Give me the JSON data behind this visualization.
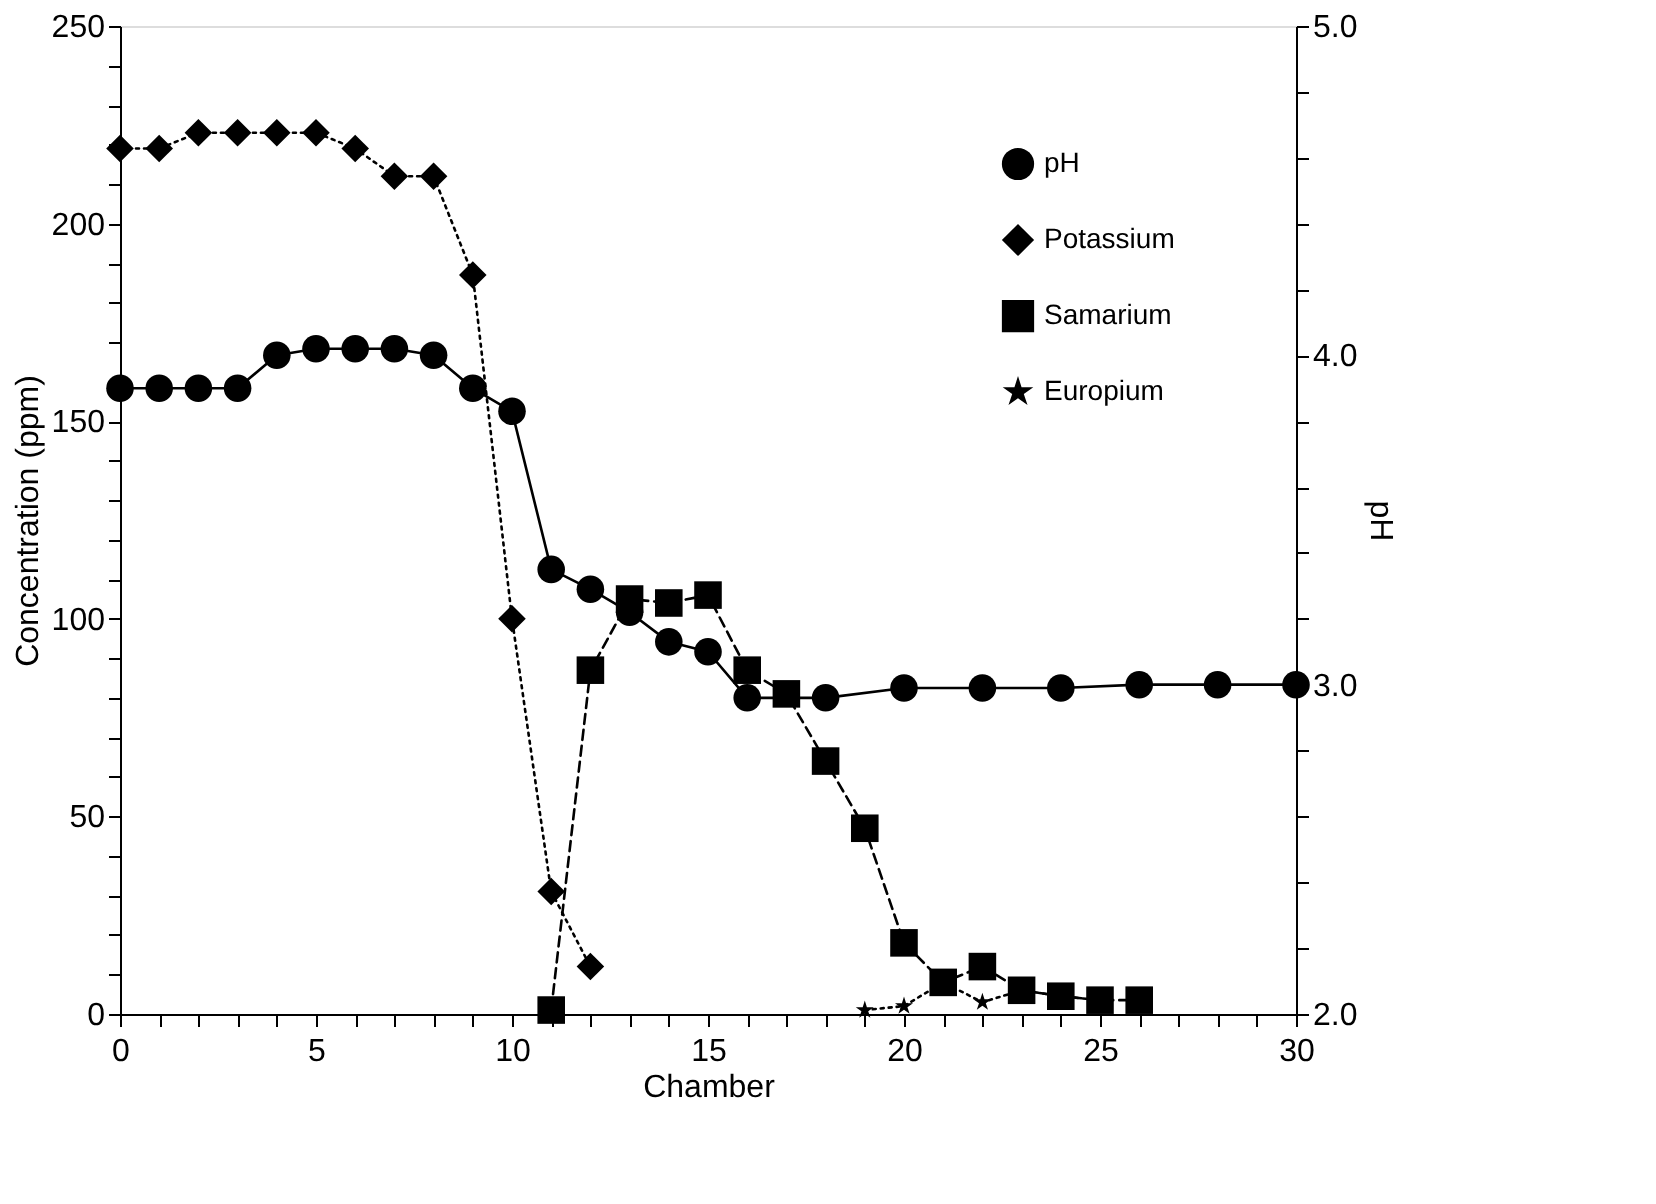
{
  "chart_data": {
    "type": "line",
    "xlabel": "Chamber",
    "ylabel": "Concentration (ppm)",
    "y2label": "pH",
    "xlim": [
      0,
      30
    ],
    "ylim": [
      0,
      250
    ],
    "y2lim": [
      2,
      5
    ],
    "xticks": [
      0,
      {
        "value": 1,
        "label": null
      },
      {
        "value": 2,
        "label": null
      },
      {
        "value": 3,
        "label": null
      },
      {
        "value": 4,
        "label": null
      },
      5,
      {
        "value": 6,
        "label": null
      },
      {
        "value": 7,
        "label": null
      },
      {
        "value": 8,
        "label": null
      },
      {
        "value": 9,
        "label": null
      },
      10,
      {
        "value": 11,
        "label": null
      },
      {
        "value": 12,
        "label": null
      },
      {
        "value": 13,
        "label": null
      },
      {
        "value": 14,
        "label": null
      },
      15,
      {
        "value": 16,
        "label": null
      },
      {
        "value": 17,
        "label": null
      },
      {
        "value": 18,
        "label": null
      },
      {
        "value": 19,
        "label": null
      },
      20,
      {
        "value": 21,
        "label": null
      },
      {
        "value": 22,
        "label": null
      },
      {
        "value": 23,
        "label": null
      },
      {
        "value": 24,
        "label": null
      },
      25,
      {
        "value": 26,
        "label": null
      },
      {
        "value": 27,
        "label": null
      },
      {
        "value": 28,
        "label": null
      },
      {
        "value": 29,
        "label": null
      },
      30
    ],
    "yticks": [
      0,
      {
        "value": 10,
        "label": null
      },
      {
        "value": 20,
        "label": null
      },
      {
        "value": 30,
        "label": null
      },
      {
        "value": 40,
        "label": null
      },
      50,
      {
        "value": 60,
        "label": null
      },
      {
        "value": 70,
        "label": null
      },
      {
        "value": 80,
        "label": null
      },
      {
        "value": 90,
        "label": null
      },
      100,
      {
        "value": 110,
        "label": null
      },
      {
        "value": 120,
        "label": null
      },
      {
        "value": 130,
        "label": null
      },
      {
        "value": 140,
        "label": null
      },
      150,
      {
        "value": 160,
        "label": null
      },
      {
        "value": 170,
        "label": null
      },
      {
        "value": 180,
        "label": null
      },
      {
        "value": 190,
        "label": null
      },
      200,
      {
        "value": 210,
        "label": null
      },
      {
        "value": 220,
        "label": null
      },
      {
        "value": 230,
        "label": null
      },
      {
        "value": 240,
        "label": null
      },
      250
    ],
    "y2ticks": [
      {
        "value": 2,
        "label": "2.0"
      },
      {
        "value": 2.2,
        "label": null
      },
      {
        "value": 2.4,
        "label": null
      },
      {
        "value": 2.6,
        "label": null
      },
      {
        "value": 2.8,
        "label": null
      },
      {
        "value": 3,
        "label": "3.0"
      },
      {
        "value": 3.2,
        "label": null
      },
      {
        "value": 3.4,
        "label": null
      },
      {
        "value": 3.6,
        "label": null
      },
      {
        "value": 3.8,
        "label": null
      },
      {
        "value": 4,
        "label": "4.0"
      },
      {
        "value": 4.2,
        "label": null
      },
      {
        "value": 4.4,
        "label": null
      },
      {
        "value": 4.6,
        "label": null
      },
      {
        "value": 4.8,
        "label": null
      },
      {
        "value": 5,
        "label": "5.0"
      }
    ],
    "grid": false,
    "legend": "top right",
    "series": [
      {
        "name": "pH",
        "color": "#000000",
        "marker": "circle",
        "line_style": "solid",
        "axis": "y2",
        "x": [
          0,
          1,
          2,
          3,
          4,
          5,
          6,
          7,
          8,
          9,
          10,
          11,
          12,
          13,
          14,
          15,
          16,
          18,
          20,
          22,
          24,
          26,
          28,
          30
        ],
        "values": [
          3.9,
          3.9,
          3.9,
          3.9,
          4.0,
          4.02,
          4.02,
          4.02,
          4.0,
          3.9,
          3.83,
          3.35,
          3.29,
          3.22,
          3.13,
          3.1,
          2.96,
          2.96,
          2.99,
          2.99,
          2.99,
          3.0,
          3.0,
          3.0
        ]
      },
      {
        "name": "Potassium",
        "color": "#000000",
        "marker": "diamond",
        "line_style": "dotted",
        "x": [
          0,
          1,
          2,
          3,
          4,
          5,
          6,
          7,
          8,
          9,
          10,
          11,
          12
        ],
        "values": [
          219,
          219,
          223,
          223,
          223,
          223,
          219,
          212,
          212,
          187,
          100,
          31,
          12
        ]
      },
      {
        "name": "Samarium",
        "color": "#000000",
        "marker": "square",
        "line_style": "dashed",
        "x": [
          11,
          12,
          13,
          14,
          15,
          16,
          17,
          18,
          19,
          20,
          21,
          22,
          23,
          24,
          25,
          26
        ],
        "values": [
          1,
          87,
          105,
          104,
          106,
          87,
          81,
          64,
          47,
          18,
          8,
          12,
          6,
          4.5,
          3.5,
          3.5
        ]
      },
      {
        "name": "Europium",
        "color": "#000000",
        "marker": "star",
        "line_style": "dotted",
        "x": [
          19,
          20,
          21,
          22,
          23,
          24,
          25
        ],
        "values": [
          1,
          2,
          8,
          3,
          6,
          4.5,
          3.5
        ]
      }
    ]
  }
}
